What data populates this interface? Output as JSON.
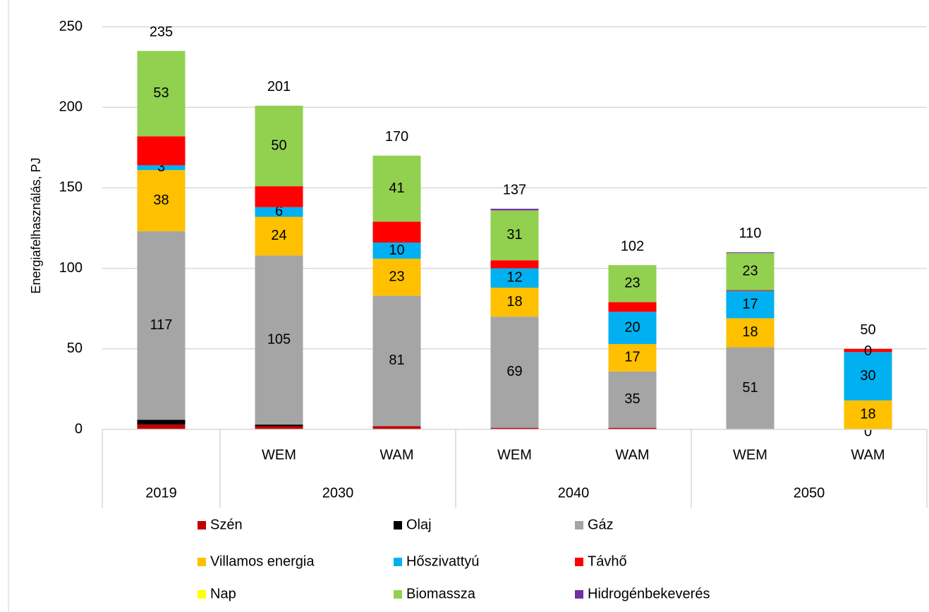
{
  "chart_data": {
    "type": "stacked_bar",
    "y_label": "Energiafelhasználás, PJ",
    "categories": [
      null,
      "WEM",
      "WAM",
      "WEM",
      "WAM",
      "WEM",
      "WAM"
    ],
    "groups": [
      {
        "name": "2019",
        "size": 1
      },
      {
        "name": "2030",
        "size": 2
      },
      {
        "name": "2040",
        "size": 2
      },
      {
        "name": "2050",
        "size": 2
      }
    ],
    "series": [
      {
        "name": "Szén",
        "color": "#c00000",
        "labels": false,
        "values": [
          3,
          2,
          2,
          1,
          1,
          0,
          0
        ]
      },
      {
        "name": "Olaj",
        "color": "#000000",
        "labels": false,
        "values": [
          3,
          1,
          0,
          0,
          0,
          0,
          0
        ]
      },
      {
        "name": "Gáz",
        "color": "#a5a5a5",
        "labels": true,
        "values": [
          117,
          105,
          81,
          69,
          35,
          51,
          0
        ]
      },
      {
        "name": "Villamos energia",
        "color": "#ffc000",
        "labels": true,
        "values": [
          38,
          24,
          23,
          18,
          17,
          18,
          18
        ]
      },
      {
        "name": "Hőszivattyú",
        "color": "#00b0f0",
        "labels": true,
        "values": [
          3,
          6,
          10,
          12,
          20,
          17,
          30
        ]
      },
      {
        "name": "Távhő",
        "color": "#ff0000",
        "labels": false,
        "values": [
          18,
          13,
          13,
          5,
          6,
          0.5,
          2
        ]
      },
      {
        "name": "Nap",
        "color": "#ffff00",
        "labels": false,
        "values": [
          0,
          0,
          0,
          0,
          0,
          0,
          0
        ]
      },
      {
        "name": "Biomassza",
        "color": "#92d050",
        "labels": true,
        "values": [
          53,
          50,
          41,
          31,
          23,
          23,
          0
        ]
      },
      {
        "name": "Hidrogénbekeverés",
        "color": "#7030a0",
        "labels": false,
        "values": [
          0,
          0,
          0,
          1,
          0,
          0.5,
          0
        ]
      }
    ],
    "totals": [
      235,
      201,
      170,
      137,
      102,
      110,
      50
    ],
    "ylim": [
      0,
      250
    ],
    "yticks": [
      0,
      50,
      100,
      150,
      200,
      250
    ],
    "grid": true,
    "legend": "bottom"
  }
}
